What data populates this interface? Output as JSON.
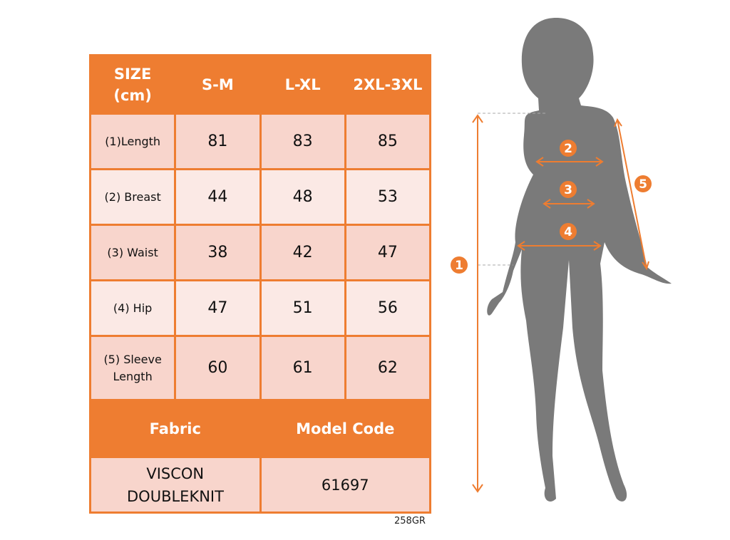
{
  "table": {
    "header": [
      "SIZE\n(cm)",
      "S-M",
      "L-XL",
      "2XL-3XL"
    ],
    "rows": [
      {
        "label": "(1)Length",
        "values": [
          "81",
          "83",
          "85"
        ]
      },
      {
        "label": "(2) Breast",
        "values": [
          "44",
          "48",
          "53"
        ]
      },
      {
        "label": "(3) Waist",
        "values": [
          "38",
          "42",
          "47"
        ]
      },
      {
        "label": "(4) Hip",
        "values": [
          "47",
          "51",
          "56"
        ]
      },
      {
        "label": "(5) Sleeve Length",
        "values": [
          "60",
          "61",
          "62"
        ]
      }
    ],
    "fabric_label": "Fabric",
    "model_code_label": "Model Code",
    "fabric_value": "VISCON DOUBLEKNIT",
    "model_code_value": "61697"
  },
  "product_code": "258GR",
  "figure": {
    "markers": [
      "1",
      "2",
      "3",
      "4",
      "5"
    ]
  },
  "colors": {
    "accent": "#ee7d31",
    "silhouette": "#7a7a7a",
    "row_dark": "#f8d5cc",
    "row_light": "#fbe9e5"
  }
}
